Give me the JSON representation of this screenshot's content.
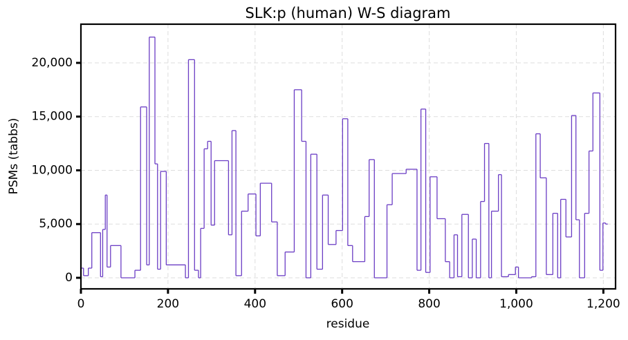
{
  "chart_data": {
    "type": "line",
    "step": "post",
    "title": "SLK:p (human) W-S diagram",
    "xlabel": "residue",
    "ylabel": "PSMs (tabbs)",
    "series": [
      {
        "name": "SLK:p",
        "color": "#6a3cc4",
        "x": [
          0,
          6,
          17,
          25,
          45,
          50,
          56,
          60,
          68,
          92,
          124,
          137,
          151,
          157,
          170,
          176,
          183,
          196,
          240,
          247,
          261,
          270,
          275,
          283,
          291,
          299,
          307,
          339,
          347,
          356,
          369,
          384,
          402,
          412,
          438,
          451,
          469,
          490,
          507,
          517,
          528,
          542,
          555,
          568,
          586,
          601,
          613,
          624,
          652,
          662,
          674,
          703,
          715,
          747,
          772,
          781,
          792,
          802,
          818,
          837,
          847,
          857,
          865,
          875,
          890,
          899,
          908,
          918,
          927,
          937,
          943,
          959,
          966,
          982,
          998,
          1005,
          1035,
          1045,
          1055,
          1069,
          1084,
          1095,
          1102,
          1114,
          1127,
          1137,
          1145,
          1157,
          1167,
          1176,
          1192,
          1199,
          1205,
          1210
        ],
        "values": [
          900,
          200,
          900,
          4200,
          100,
          4500,
          7700,
          1000,
          3000,
          0,
          700,
          15900,
          1200,
          22400,
          10600,
          800,
          9900,
          1200,
          0,
          20300,
          700,
          0,
          4600,
          12000,
          12700,
          4900,
          10900,
          4000,
          13700,
          200,
          6200,
          7800,
          3900,
          8800,
          5200,
          200,
          2400,
          17500,
          12700,
          0,
          11500,
          800,
          7700,
          3100,
          4400,
          14800,
          3000,
          1500,
          5700,
          11000,
          0,
          6800,
          9700,
          10100,
          700,
          15700,
          500,
          9400,
          5500,
          1500,
          0,
          4000,
          100,
          5900,
          0,
          3600,
          0,
          7100,
          12500,
          0,
          6200,
          9600,
          100,
          300,
          1000,
          0,
          100,
          13400,
          9300,
          300,
          6000,
          0,
          7300,
          3800,
          15100,
          5400,
          0,
          6000,
          11800,
          17200,
          700,
          5100,
          5000,
          5000
        ]
      }
    ],
    "xlim": [
      0,
      1228
    ],
    "ylim": [
      -1030,
      23600
    ],
    "xticks": [
      0,
      200,
      400,
      600,
      800,
      {
        "value": 1000,
        "label": "1,000"
      },
      {
        "value": 1200,
        "label": "1,200"
      }
    ],
    "yticks": [
      0,
      {
        "value": 5000,
        "label": "5,000"
      },
      {
        "value": 10000,
        "label": "10,000"
      },
      {
        "value": 15000,
        "label": "15,000"
      },
      {
        "value": 20000,
        "label": "20,000"
      }
    ],
    "grid": true
  }
}
